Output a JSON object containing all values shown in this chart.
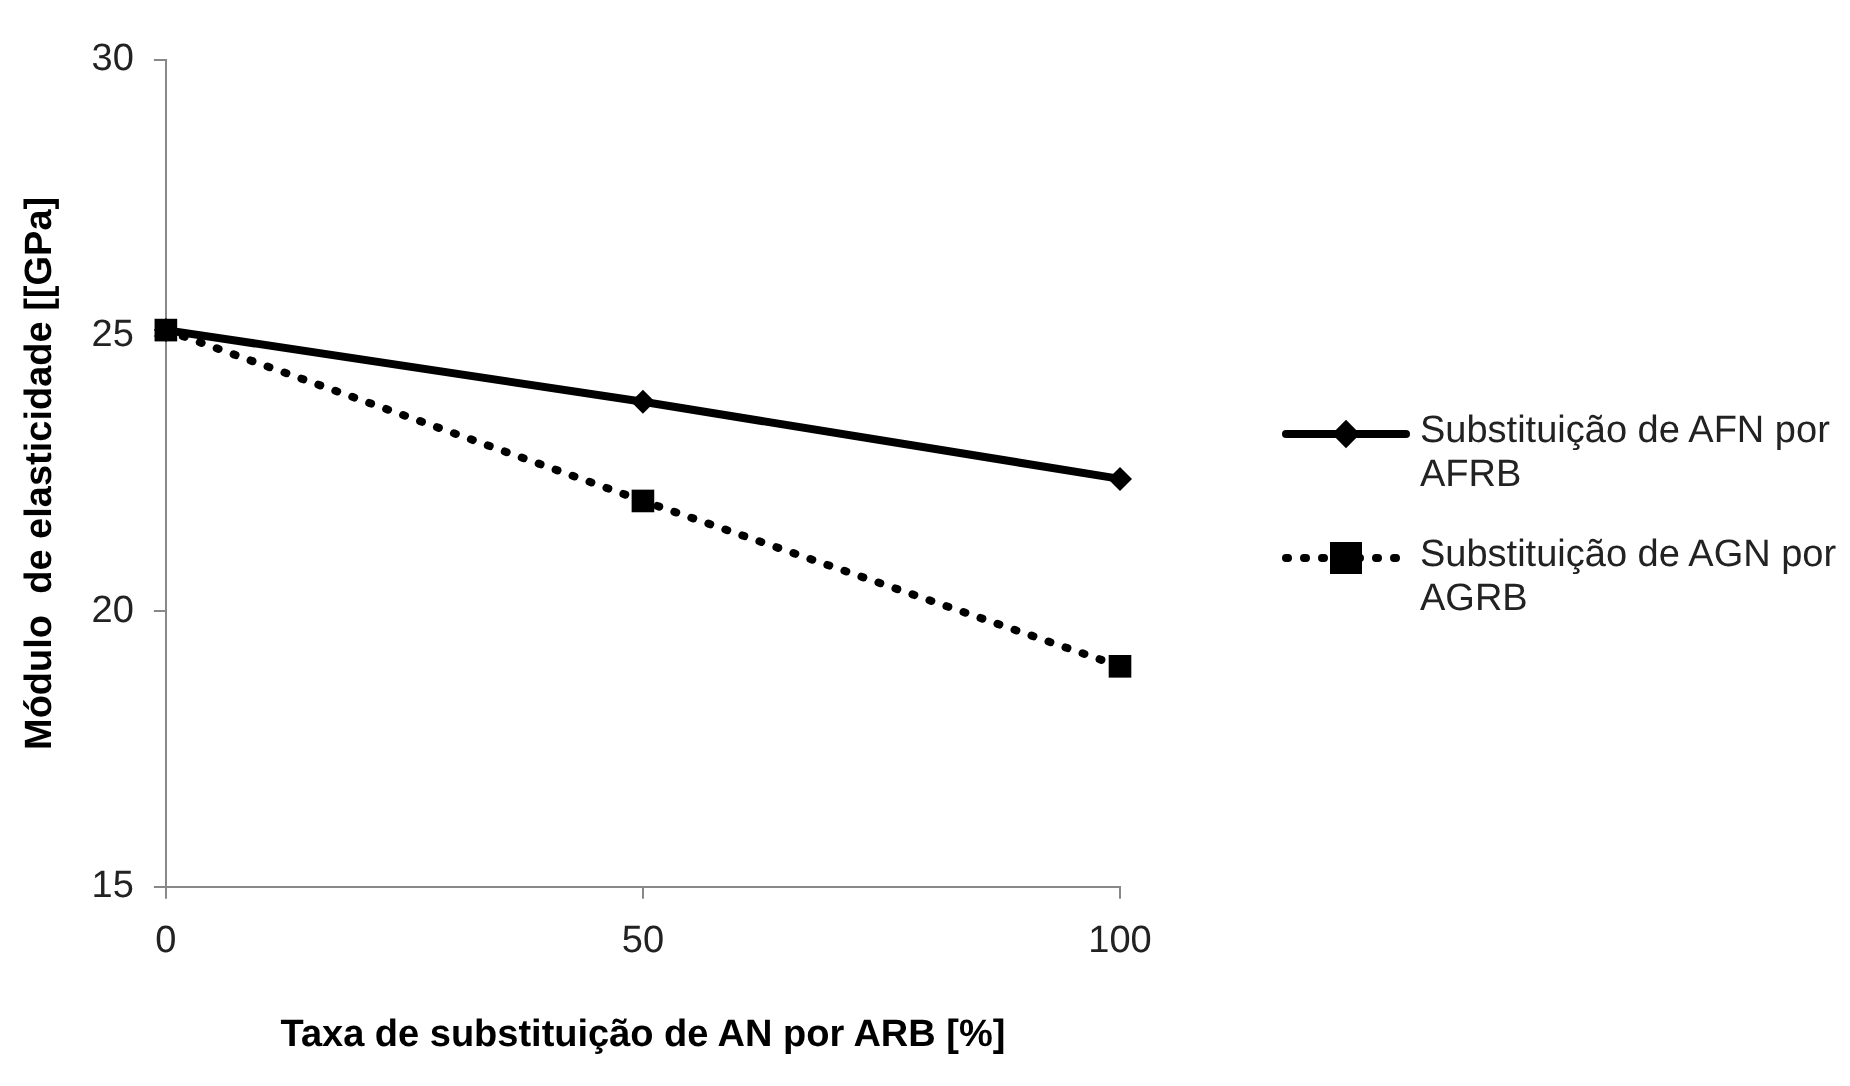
{
  "chart_data": {
    "type": "line",
    "xlabel": "Taxa de substituição de AN por ARB [%]",
    "ylabel": "Módulo  de elasticidade [[GPa]",
    "x": [
      0,
      50,
      100
    ],
    "xlim": [
      0,
      100
    ],
    "xticks": [
      0,
      50,
      100
    ],
    "ylim": [
      15,
      30
    ],
    "yticks": [
      15,
      20,
      25,
      30
    ],
    "grid": false,
    "legend": "right",
    "series": [
      {
        "name": "Substituição de AFN por AFRB",
        "color": "#000000",
        "values": [
          25.1,
          23.8,
          22.4
        ],
        "marker": "diamond",
        "line_style": "solid"
      },
      {
        "name": "Substituição de AGN por AGRB",
        "color": "#000000",
        "values": [
          25.1,
          22.0,
          19.0
        ],
        "marker": "square",
        "line_style": "dotted"
      }
    ]
  }
}
